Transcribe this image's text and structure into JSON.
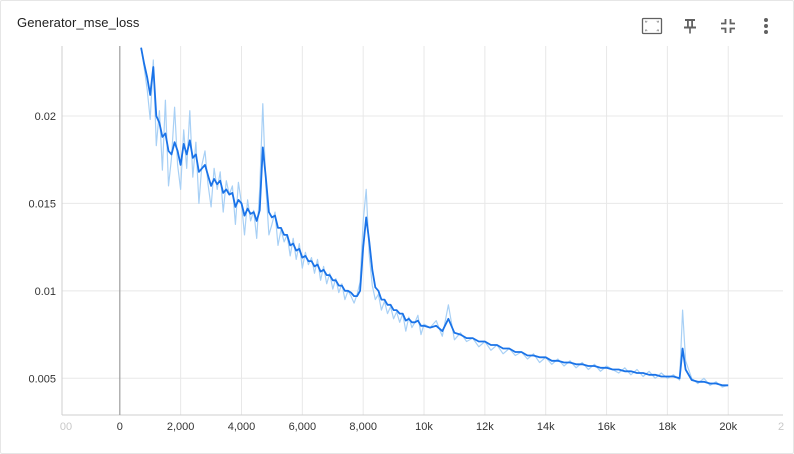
{
  "card": {
    "title": "Generator_mse_loss",
    "tools": [
      {
        "name": "fit-domain-icon"
      },
      {
        "name": "pin-icon"
      },
      {
        "name": "collapse-icon"
      },
      {
        "name": "more-vert-icon"
      }
    ]
  },
  "chart_data": {
    "type": "line",
    "title": "Generator_mse_loss",
    "xlabel": "",
    "ylabel": "",
    "x_ticks": [
      "00",
      "0",
      "2,000",
      "4,000",
      "6,000",
      "8,000",
      "10k",
      "12k",
      "14k",
      "16k",
      "18k",
      "20k",
      "2"
    ],
    "y_ticks": [
      "0.005",
      "0.01",
      "0.015",
      "0.02"
    ],
    "xlim": [
      -1900,
      21800
    ],
    "ylim": [
      0.0029,
      0.024
    ],
    "grid": true,
    "colors": {
      "smoothed": "#1a73e8",
      "raw": "#a8d0f5"
    },
    "series": [
      {
        "role": "raw",
        "x": [
          700,
          800,
          900,
          1000,
          1100,
          1200,
          1300,
          1400,
          1500,
          1600,
          1700,
          1800,
          1900,
          2000,
          2100,
          2200,
          2300,
          2400,
          2500,
          2600,
          2700,
          2800,
          2900,
          3000,
          3100,
          3200,
          3300,
          3400,
          3500,
          3600,
          3700,
          3800,
          3900,
          4000,
          4100,
          4200,
          4300,
          4400,
          4500,
          4600,
          4700,
          4800,
          4900,
          5000,
          5100,
          5200,
          5300,
          5400,
          5500,
          5600,
          5700,
          5800,
          5900,
          6000,
          6100,
          6200,
          6300,
          6400,
          6500,
          6600,
          6700,
          6800,
          6900,
          7000,
          7100,
          7200,
          7300,
          7400,
          7500,
          7600,
          7700,
          7800,
          7900,
          8000,
          8100,
          8200,
          8300,
          8400,
          8500,
          8600,
          8700,
          8800,
          8900,
          9000,
          9100,
          9200,
          9300,
          9400,
          9500,
          9600,
          9700,
          9800,
          9900,
          10000,
          10200,
          10400,
          10600,
          10800,
          11000,
          11200,
          11400,
          11600,
          11800,
          12000,
          12200,
          12400,
          12600,
          12800,
          13000,
          13200,
          13400,
          13600,
          13800,
          14000,
          14200,
          14400,
          14600,
          14800,
          15000,
          15200,
          15400,
          15600,
          15800,
          16000,
          16200,
          16400,
          16600,
          16800,
          17000,
          17200,
          17400,
          17600,
          17800,
          18000,
          18200,
          18400,
          18500,
          18600,
          18800,
          19000,
          19200,
          19400,
          19600,
          19800,
          20000
        ],
        "y": [
          0.0239,
          0.0228,
          0.0215,
          0.0198,
          0.0232,
          0.0183,
          0.0203,
          0.0169,
          0.0209,
          0.016,
          0.0176,
          0.0205,
          0.0172,
          0.0158,
          0.0192,
          0.017,
          0.0203,
          0.0165,
          0.0185,
          0.015,
          0.0172,
          0.018,
          0.0161,
          0.0148,
          0.017,
          0.0158,
          0.0168,
          0.0145,
          0.0163,
          0.0155,
          0.016,
          0.0138,
          0.0162,
          0.015,
          0.0132,
          0.0152,
          0.014,
          0.0146,
          0.013,
          0.0158,
          0.0207,
          0.016,
          0.0132,
          0.0138,
          0.0145,
          0.0126,
          0.0135,
          0.0128,
          0.0132,
          0.012,
          0.013,
          0.0118,
          0.0127,
          0.0113,
          0.0122,
          0.0115,
          0.0119,
          0.011,
          0.0118,
          0.0106,
          0.0114,
          0.0104,
          0.011,
          0.0101,
          0.0107,
          0.0099,
          0.0104,
          0.0095,
          0.01,
          0.0097,
          0.0093,
          0.0098,
          0.0105,
          0.014,
          0.0158,
          0.012,
          0.0103,
          0.0095,
          0.0098,
          0.0089,
          0.0094,
          0.0087,
          0.0091,
          0.0084,
          0.0088,
          0.0082,
          0.0087,
          0.0077,
          0.0085,
          0.0079,
          0.0082,
          0.0086,
          0.0075,
          0.0081,
          0.0079,
          0.0083,
          0.0074,
          0.0092,
          0.0072,
          0.0076,
          0.0071,
          0.0073,
          0.0068,
          0.0071,
          0.0066,
          0.0069,
          0.0064,
          0.0067,
          0.0063,
          0.0065,
          0.0061,
          0.0064,
          0.0059,
          0.0062,
          0.0058,
          0.0061,
          0.0057,
          0.006,
          0.0056,
          0.0059,
          0.0055,
          0.0058,
          0.0054,
          0.0057,
          0.0055,
          0.0053,
          0.0056,
          0.0052,
          0.0055,
          0.0051,
          0.0054,
          0.005,
          0.0053,
          0.005,
          0.0052,
          0.0049,
          0.0089,
          0.006,
          0.005,
          0.0047,
          0.005,
          0.0046,
          0.0048,
          0.0045,
          0.0046
        ]
      },
      {
        "role": "smoothed",
        "x": [
          700,
          800,
          900,
          1000,
          1100,
          1200,
          1300,
          1400,
          1500,
          1600,
          1700,
          1800,
          1900,
          2000,
          2100,
          2200,
          2300,
          2400,
          2500,
          2600,
          2700,
          2800,
          2900,
          3000,
          3100,
          3200,
          3300,
          3400,
          3500,
          3600,
          3700,
          3800,
          3900,
          4000,
          4100,
          4200,
          4300,
          4400,
          4500,
          4600,
          4700,
          4800,
          4900,
          5000,
          5100,
          5200,
          5300,
          5400,
          5500,
          5600,
          5700,
          5800,
          5900,
          6000,
          6100,
          6200,
          6300,
          6400,
          6500,
          6600,
          6700,
          6800,
          6900,
          7000,
          7100,
          7200,
          7300,
          7400,
          7500,
          7600,
          7700,
          7800,
          7900,
          8000,
          8100,
          8200,
          8300,
          8400,
          8500,
          8600,
          8700,
          8800,
          8900,
          9000,
          9100,
          9200,
          9300,
          9400,
          9500,
          9600,
          9700,
          9800,
          9900,
          10000,
          10200,
          10400,
          10600,
          10800,
          11000,
          11200,
          11400,
          11600,
          11800,
          12000,
          12200,
          12400,
          12600,
          12800,
          13000,
          13200,
          13400,
          13600,
          13800,
          14000,
          14200,
          14400,
          14600,
          14800,
          15000,
          15200,
          15400,
          15600,
          15800,
          16000,
          16200,
          16400,
          16600,
          16800,
          17000,
          17200,
          17400,
          17600,
          17800,
          18000,
          18200,
          18400,
          18500,
          18600,
          18800,
          19000,
          19200,
          19400,
          19600,
          19800,
          20000
        ],
        "y": [
          0.0239,
          0.023,
          0.0222,
          0.0212,
          0.0228,
          0.02,
          0.0196,
          0.0188,
          0.019,
          0.018,
          0.0178,
          0.0185,
          0.018,
          0.0172,
          0.0184,
          0.0178,
          0.0186,
          0.0176,
          0.0178,
          0.0168,
          0.017,
          0.0172,
          0.0166,
          0.016,
          0.0164,
          0.0161,
          0.0163,
          0.0156,
          0.0158,
          0.0155,
          0.0156,
          0.0148,
          0.0152,
          0.015,
          0.0143,
          0.0147,
          0.0144,
          0.0145,
          0.014,
          0.0146,
          0.0182,
          0.0165,
          0.0145,
          0.0142,
          0.0143,
          0.0136,
          0.0136,
          0.0132,
          0.0132,
          0.0126,
          0.0127,
          0.0123,
          0.0124,
          0.0119,
          0.012,
          0.0117,
          0.0117,
          0.0114,
          0.0115,
          0.0111,
          0.0112,
          0.0109,
          0.0109,
          0.0106,
          0.0106,
          0.0103,
          0.0103,
          0.01,
          0.01,
          0.0099,
          0.0097,
          0.0097,
          0.01,
          0.0125,
          0.0142,
          0.0128,
          0.0112,
          0.0102,
          0.01,
          0.0095,
          0.0095,
          0.0092,
          0.0092,
          0.0089,
          0.0089,
          0.0087,
          0.0087,
          0.0083,
          0.0084,
          0.0082,
          0.0082,
          0.0083,
          0.008,
          0.008,
          0.0079,
          0.008,
          0.0077,
          0.0084,
          0.0076,
          0.0075,
          0.0073,
          0.0073,
          0.0071,
          0.0071,
          0.0069,
          0.0069,
          0.0067,
          0.0067,
          0.0065,
          0.0065,
          0.0063,
          0.0063,
          0.0062,
          0.0062,
          0.006,
          0.006,
          0.0059,
          0.0059,
          0.0058,
          0.0058,
          0.0057,
          0.0057,
          0.0056,
          0.0056,
          0.0055,
          0.0055,
          0.0054,
          0.0054,
          0.0053,
          0.0053,
          0.0052,
          0.0052,
          0.0051,
          0.0051,
          0.0051,
          0.005,
          0.0067,
          0.0055,
          0.0049,
          0.0048,
          0.0048,
          0.0047,
          0.0047,
          0.0046,
          0.0046
        ]
      }
    ]
  }
}
